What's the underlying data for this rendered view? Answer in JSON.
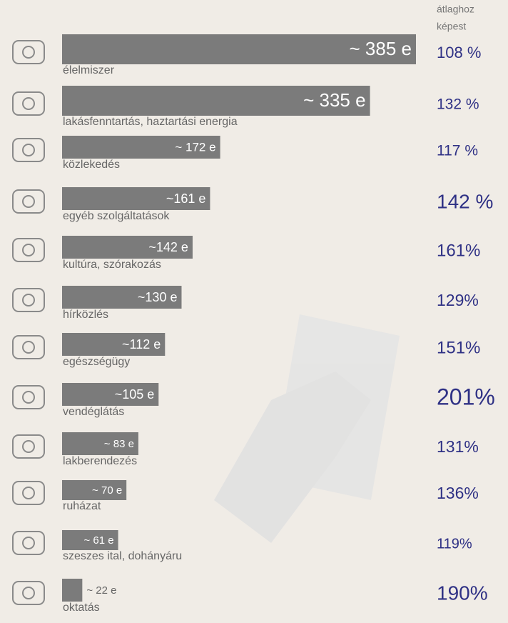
{
  "chart_data": {
    "type": "bar",
    "categories": [
      "élelmiszer",
      "lakásfenntartás, haztartási energia",
      "közlekedés",
      "egyéb szolgáltatások",
      "kultúra, szórakozás",
      "hírközlés",
      "egészségügy",
      "vendéglátás",
      "lakberendezés",
      "ruházat",
      "szeszes ital, dohányáru",
      "oktatás"
    ],
    "values": [
      385,
      335,
      172,
      161,
      142,
      130,
      112,
      105,
      83,
      70,
      61,
      22
    ],
    "value_labels": [
      "~ 385 e",
      "~ 335 e",
      "~ 172 e",
      "~161 e",
      "~142 e",
      "~130 e",
      "~112 e",
      "~105 e",
      "~ 83 e",
      "~ 70 e",
      "~ 61 e",
      "~ 22 e"
    ],
    "color": "#7b7b7b",
    "comparison": {
      "title_lines": [
        "átlaghoz",
        "képest"
      ],
      "values": [
        108,
        132,
        117,
        142,
        161,
        129,
        151,
        201,
        131,
        136,
        119,
        190
      ],
      "value_labels": [
        "108 %",
        "132 %",
        "117 %",
        "142 %",
        "161%",
        "129%",
        "151%",
        "201%",
        "131%",
        "136%",
        "119%",
        "190%"
      ],
      "color": "#2f3185"
    }
  }
}
